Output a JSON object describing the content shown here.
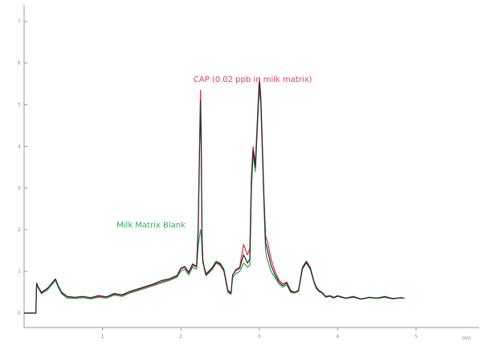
{
  "chart_data": {
    "type": "line",
    "title": "",
    "xlabel": "",
    "ylabel": "",
    "xlim": [
      0,
      5.8
    ],
    "ylim": [
      0,
      7.4
    ],
    "grid": false,
    "x_ticks": [
      {
        "value": 1,
        "label": "1"
      },
      {
        "value": 2,
        "label": "2"
      },
      {
        "value": 3,
        "label": "3"
      },
      {
        "value": 4,
        "label": "4"
      },
      {
        "value": 5,
        "label": "5"
      }
    ],
    "x_unit_label": "min",
    "y_ticks": [
      {
        "value": 0,
        "label": "0"
      },
      {
        "value": 1,
        "label": "1"
      },
      {
        "value": 2,
        "label": "2"
      },
      {
        "value": 3,
        "label": "3"
      },
      {
        "value": 4,
        "label": "4"
      },
      {
        "value": 5,
        "label": "5"
      },
      {
        "value": 6,
        "label": "6"
      },
      {
        "value": 7,
        "label": "7"
      }
    ],
    "annotations": [
      {
        "text": "CAP (0.02 ppb in milk matrix)",
        "x": 2.16,
        "y": 5.55,
        "color": "#e0405a"
      },
      {
        "text": "Milk Matrix Blank",
        "x": 1.18,
        "y": 2.05,
        "color": "#3aa85a"
      }
    ],
    "series": [
      {
        "color": "#d9304a",
        "x": [
          0.0,
          0.15,
          0.16,
          0.18,
          0.22,
          0.3,
          0.4,
          0.44,
          0.48,
          0.55,
          0.65,
          0.75,
          0.85,
          0.95,
          1.05,
          1.15,
          1.25,
          1.35,
          1.45,
          1.55,
          1.65,
          1.75,
          1.85,
          1.95,
          2.0,
          2.05,
          2.1,
          2.15,
          2.2,
          2.22,
          2.25,
          2.26,
          2.27,
          2.28,
          2.3,
          2.32,
          2.35,
          2.4,
          2.45,
          2.5,
          2.55,
          2.6,
          2.64,
          2.66,
          2.7,
          2.75,
          2.8,
          2.85,
          2.88,
          2.9,
          2.92,
          2.95,
          2.97,
          3.0,
          3.02,
          3.04,
          3.06,
          3.08,
          3.1,
          3.15,
          3.2,
          3.25,
          3.3,
          3.35,
          3.4,
          3.45,
          3.5,
          3.55,
          3.6,
          3.65,
          3.7,
          3.73,
          3.76,
          3.8,
          3.85,
          3.9,
          3.95,
          4.0,
          4.1,
          4.2,
          4.3,
          4.4,
          4.5,
          4.6,
          4.7,
          4.8,
          4.85
        ],
        "y": [
          0.0,
          0.0,
          0.7,
          0.62,
          0.48,
          0.58,
          0.8,
          0.62,
          0.48,
          0.38,
          0.36,
          0.38,
          0.35,
          0.4,
          0.37,
          0.45,
          0.42,
          0.5,
          0.56,
          0.62,
          0.68,
          0.75,
          0.8,
          0.88,
          1.05,
          1.1,
          0.95,
          1.15,
          1.1,
          2.0,
          5.35,
          4.2,
          1.8,
          1.3,
          1.05,
          0.9,
          0.95,
          1.05,
          1.2,
          1.15,
          1.0,
          0.5,
          0.45,
          0.9,
          1.05,
          1.1,
          1.65,
          1.4,
          1.55,
          3.3,
          4.0,
          3.6,
          4.4,
          5.65,
          5.2,
          4.0,
          2.8,
          1.85,
          1.75,
          1.3,
          1.0,
          0.8,
          0.7,
          0.75,
          0.55,
          0.5,
          0.55,
          1.1,
          1.25,
          1.1,
          0.75,
          0.62,
          0.55,
          0.5,
          0.4,
          0.42,
          0.38,
          0.42,
          0.36,
          0.4,
          0.34,
          0.38,
          0.36,
          0.4,
          0.35,
          0.37,
          0.36
        ]
      },
      {
        "color": "#2f9a4f",
        "x": [
          0.0,
          0.15,
          0.16,
          0.18,
          0.22,
          0.3,
          0.4,
          0.44,
          0.48,
          0.55,
          0.65,
          0.75,
          0.85,
          0.95,
          1.05,
          1.15,
          1.25,
          1.35,
          1.45,
          1.55,
          1.65,
          1.75,
          1.85,
          1.95,
          2.0,
          2.05,
          2.1,
          2.15,
          2.2,
          2.22,
          2.25,
          2.26,
          2.27,
          2.28,
          2.3,
          2.32,
          2.35,
          2.4,
          2.45,
          2.5,
          2.55,
          2.6,
          2.64,
          2.66,
          2.7,
          2.75,
          2.8,
          2.85,
          2.88,
          2.9,
          2.92,
          2.95,
          2.97,
          3.0,
          3.02,
          3.04,
          3.06,
          3.08,
          3.1,
          3.15,
          3.2,
          3.25,
          3.3,
          3.35,
          3.4,
          3.45,
          3.5,
          3.55,
          3.6,
          3.65,
          3.7,
          3.73,
          3.76,
          3.8,
          3.85,
          3.9,
          3.95,
          4.0,
          4.1,
          4.2,
          4.3,
          4.4,
          4.5,
          4.6,
          4.7,
          4.8,
          4.85
        ],
        "y": [
          0.0,
          0.0,
          0.68,
          0.6,
          0.46,
          0.56,
          0.78,
          0.6,
          0.46,
          0.36,
          0.35,
          0.37,
          0.34,
          0.38,
          0.36,
          0.43,
          0.4,
          0.48,
          0.54,
          0.6,
          0.66,
          0.72,
          0.78,
          0.86,
          1.0,
          1.05,
          0.92,
          1.1,
          1.05,
          1.6,
          2.0,
          1.9,
          1.5,
          1.2,
          1.1,
          0.95,
          1.0,
          1.1,
          1.25,
          1.2,
          1.05,
          0.55,
          0.5,
          0.85,
          0.95,
          1.0,
          1.2,
          1.1,
          1.15,
          3.0,
          3.8,
          3.4,
          4.2,
          5.45,
          5.0,
          3.8,
          2.6,
          1.5,
          1.3,
          1.0,
          0.85,
          0.7,
          0.62,
          0.68,
          0.5,
          0.48,
          0.52,
          1.05,
          1.2,
          1.05,
          0.72,
          0.58,
          0.52,
          0.48,
          0.38,
          0.4,
          0.36,
          0.4,
          0.35,
          0.38,
          0.33,
          0.37,
          0.35,
          0.38,
          0.34,
          0.36,
          0.35
        ]
      },
      {
        "color": "#2b2b2b",
        "x": [
          0.0,
          0.15,
          0.16,
          0.18,
          0.22,
          0.3,
          0.4,
          0.44,
          0.48,
          0.55,
          0.65,
          0.75,
          0.85,
          0.95,
          1.05,
          1.15,
          1.25,
          1.35,
          1.45,
          1.55,
          1.65,
          1.75,
          1.85,
          1.95,
          2.0,
          2.05,
          2.1,
          2.15,
          2.2,
          2.22,
          2.25,
          2.26,
          2.27,
          2.28,
          2.3,
          2.32,
          2.35,
          2.4,
          2.45,
          2.5,
          2.55,
          2.6,
          2.64,
          2.66,
          2.7,
          2.75,
          2.8,
          2.85,
          2.88,
          2.9,
          2.92,
          2.95,
          2.97,
          3.0,
          3.02,
          3.04,
          3.06,
          3.08,
          3.1,
          3.15,
          3.2,
          3.25,
          3.3,
          3.35,
          3.4,
          3.45,
          3.5,
          3.55,
          3.6,
          3.65,
          3.7,
          3.73,
          3.76,
          3.8,
          3.85,
          3.9,
          3.95,
          4.0,
          4.1,
          4.2,
          4.3,
          4.4,
          4.5,
          4.6,
          4.7,
          4.8,
          4.85
        ],
        "y": [
          0.0,
          0.0,
          0.72,
          0.63,
          0.5,
          0.6,
          0.82,
          0.64,
          0.5,
          0.4,
          0.38,
          0.4,
          0.37,
          0.42,
          0.39,
          0.47,
          0.44,
          0.52,
          0.58,
          0.64,
          0.7,
          0.78,
          0.82,
          0.9,
          1.08,
          1.12,
          0.98,
          1.18,
          1.12,
          1.9,
          5.1,
          4.0,
          1.7,
          1.25,
          1.08,
          0.92,
          0.98,
          1.08,
          1.22,
          1.18,
          1.02,
          0.52,
          0.48,
          0.92,
          1.02,
          1.08,
          1.4,
          1.2,
          1.3,
          3.2,
          3.9,
          3.5,
          4.3,
          5.55,
          5.1,
          3.9,
          2.7,
          1.7,
          1.55,
          1.15,
          0.92,
          0.75,
          0.66,
          0.72,
          0.52,
          0.5,
          0.54,
          1.08,
          1.22,
          1.08,
          0.74,
          0.6,
          0.54,
          0.49,
          0.39,
          0.41,
          0.37,
          0.41,
          0.36,
          0.39,
          0.34,
          0.38,
          0.36,
          0.39,
          0.35,
          0.37,
          0.36
        ]
      }
    ]
  }
}
